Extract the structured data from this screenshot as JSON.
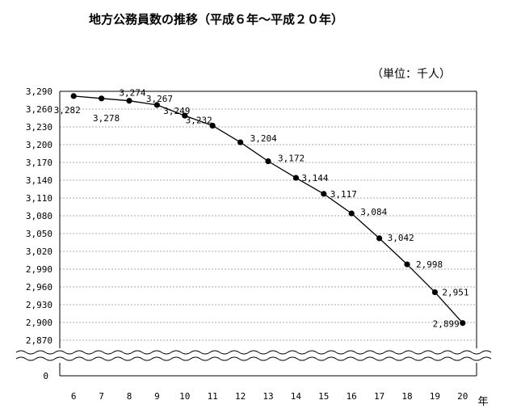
{
  "chart_data": {
    "type": "line",
    "title": "地方公務員数の推移（平成６年～平成２０年）",
    "unit_label": "（単位：千人）",
    "x": [
      6,
      7,
      8,
      9,
      10,
      11,
      12,
      13,
      14,
      15,
      16,
      17,
      18,
      19,
      20
    ],
    "x_unit": "年",
    "series": [
      {
        "values": [
          3282,
          3278,
          3274,
          3267,
          3249,
          3232,
          3204,
          3172,
          3144,
          3117,
          3084,
          3042,
          2998,
          2951,
          2899
        ],
        "labels": [
          "3,282",
          "3,278",
          "3,274",
          "3,267",
          "3,249",
          "3,232",
          "3,204",
          "3,172",
          "3,144",
          "3,117",
          "3,084",
          "3,042",
          "2,998",
          "2,951",
          "2,899"
        ]
      }
    ],
    "ylim": [
      2870,
      3290
    ],
    "y_ticks": [
      3290,
      3260,
      3230,
      3200,
      3170,
      3140,
      3110,
      3080,
      3050,
      3020,
      2990,
      2960,
      2930,
      2900,
      2870
    ],
    "y_tick_labels": [
      "3,290",
      "3,260",
      "3,230",
      "3,200",
      "3,170",
      "3,140",
      "3,110",
      "3,080",
      "3,050",
      "3,020",
      "2,990",
      "2,960",
      "2,930",
      "2,900",
      "2,870"
    ],
    "y_break_label": "0",
    "grid": true,
    "axis_break": true,
    "color": "#000000"
  }
}
